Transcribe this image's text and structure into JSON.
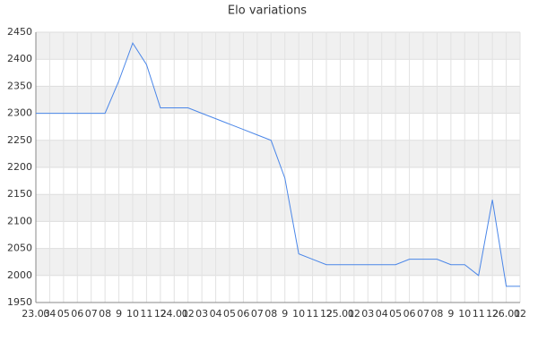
{
  "chart_data": {
    "type": "line",
    "title": "Elo variations",
    "categories": [
      "23.03",
      "04",
      "05",
      "06",
      "07",
      "08",
      "9",
      "10",
      "11",
      "12",
      "24.01",
      "02",
      "03",
      "04",
      "05",
      "06",
      "07",
      "08",
      "9",
      "10",
      "11",
      "12",
      "25.01",
      "02",
      "03",
      "04",
      "05",
      "06",
      "07",
      "08",
      "9",
      "10",
      "11",
      "12",
      "26.01",
      "02"
    ],
    "series": [
      {
        "name": "Elo",
        "color": "#4a86e8",
        "values": [
          2300,
          2300,
          2300,
          2300,
          2300,
          2300,
          2360,
          2430,
          2390,
          2310,
          2310,
          2310,
          2300,
          2290,
          2280,
          2270,
          2260,
          2250,
          2180,
          2040,
          2030,
          2020,
          2020,
          2020,
          2020,
          2020,
          2020,
          2030,
          2030,
          2030,
          2020,
          2020,
          2000,
          2140,
          1980,
          1980
        ]
      }
    ],
    "ylim": [
      1950,
      2450
    ],
    "yticks": [
      1950,
      2000,
      2050,
      2100,
      2150,
      2200,
      2250,
      2300,
      2350,
      2400,
      2450
    ],
    "grid": true
  }
}
